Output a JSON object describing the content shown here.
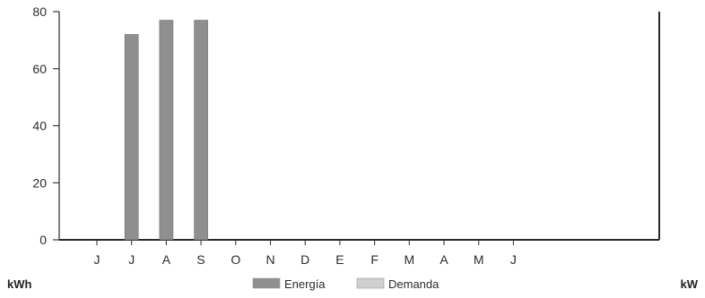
{
  "chart_data": {
    "type": "bar",
    "categories": [
      "J",
      "J",
      "A",
      "S",
      "O",
      "N",
      "D",
      "E",
      "F",
      "M",
      "A",
      "M",
      "J"
    ],
    "series": [
      {
        "name": "Energía",
        "values": [
          0,
          72,
          77,
          77,
          0,
          0,
          0,
          0,
          0,
          0,
          0,
          0,
          0
        ],
        "color": "#8f8f8f"
      },
      {
        "name": "Demanda",
        "values": [
          0,
          0,
          0,
          0,
          0,
          0,
          0,
          0,
          0,
          0,
          0,
          0,
          0
        ],
        "color": "#cfcfcf"
      }
    ],
    "ylim": [
      0,
      80
    ],
    "yticks": [
      0,
      20,
      40,
      60,
      80
    ],
    "left_axis_unit": "kWh",
    "right_axis_unit": "kW",
    "legend_position": "bottom-center",
    "grid": false
  }
}
